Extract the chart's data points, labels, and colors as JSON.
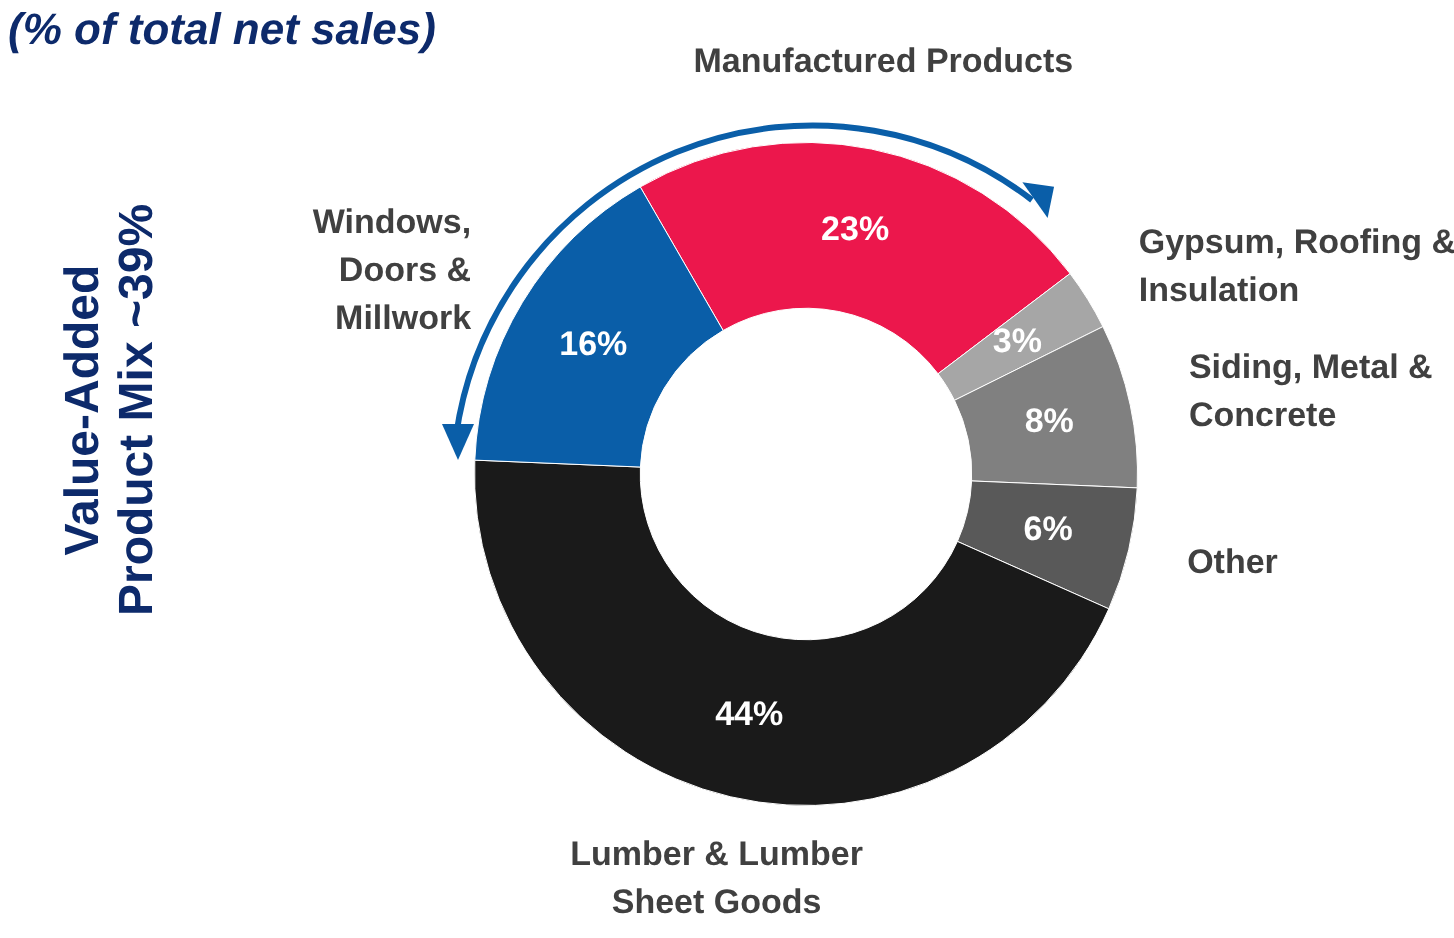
{
  "chart_data": {
    "type": "donut",
    "title": "(% of total net sales)",
    "categories": [
      "Manufactured Products",
      "Gypsum, Roofing & Insulation",
      "Siding, Metal & Concrete",
      "Other",
      "Lumber & Lumber Sheet Goods",
      "Windows, Doors & Millwork"
    ],
    "values": [
      23,
      3,
      8,
      6,
      44,
      16
    ],
    "colors": [
      "#ec174c",
      "#a6a6a6",
      "#808080",
      "#595959",
      "#1a1a1a",
      "#0a5ea8"
    ],
    "value_labels": [
      "23%",
      "3%",
      "8%",
      "6%",
      "44%",
      "16%"
    ],
    "annotations": [
      "Value-Added Product Mix ~39%"
    ]
  }
}
